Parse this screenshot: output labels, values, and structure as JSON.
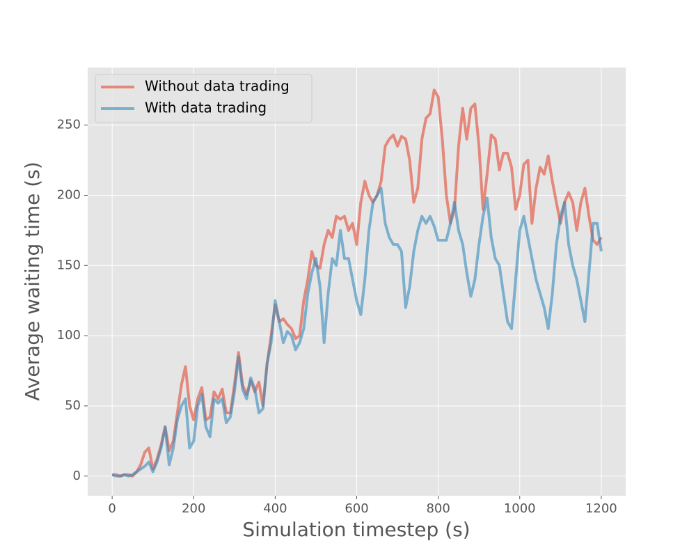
{
  "chart_data": {
    "type": "line",
    "xlabel": "Simulation timestep (s)",
    "ylabel": "Average waiting time (s)",
    "x": [
      0,
      10,
      20,
      30,
      40,
      50,
      60,
      70,
      80,
      90,
      100,
      110,
      120,
      130,
      140,
      150,
      160,
      170,
      180,
      190,
      200,
      210,
      220,
      230,
      240,
      250,
      260,
      270,
      280,
      290,
      300,
      310,
      320,
      330,
      340,
      350,
      360,
      370,
      380,
      390,
      400,
      410,
      420,
      430,
      440,
      450,
      460,
      470,
      480,
      490,
      500,
      510,
      520,
      530,
      540,
      550,
      560,
      570,
      580,
      590,
      600,
      610,
      620,
      630,
      640,
      650,
      660,
      670,
      680,
      690,
      700,
      710,
      720,
      730,
      740,
      750,
      760,
      770,
      780,
      790,
      800,
      810,
      820,
      830,
      840,
      850,
      860,
      870,
      880,
      890,
      900,
      910,
      920,
      930,
      940,
      950,
      960,
      970,
      980,
      990,
      1000,
      1010,
      1020,
      1030,
      1040,
      1050,
      1060,
      1070,
      1080,
      1090,
      1100,
      1110,
      1120,
      1130,
      1140,
      1150,
      1160,
      1170,
      1180,
      1190,
      1200
    ],
    "series": [
      {
        "name": "Without data trading",
        "color": "#E24A33",
        "values": [
          1,
          1,
          0,
          1,
          1,
          0,
          3,
          8,
          17,
          20,
          5,
          12,
          22,
          35,
          18,
          25,
          45,
          65,
          78,
          50,
          40,
          55,
          63,
          40,
          42,
          60,
          55,
          62,
          45,
          45,
          65,
          88,
          65,
          58,
          68,
          60,
          67,
          50,
          80,
          100,
          122,
          110,
          112,
          108,
          105,
          98,
          100,
          125,
          140,
          160,
          150,
          148,
          165,
          175,
          170,
          185,
          183,
          185,
          175,
          180,
          165,
          195,
          210,
          200,
          195,
          200,
          210,
          235,
          240,
          243,
          235,
          242,
          240,
          225,
          195,
          205,
          240,
          255,
          258,
          275,
          270,
          240,
          200,
          180,
          190,
          235,
          262,
          240,
          262,
          265,
          235,
          190,
          215,
          243,
          240,
          218,
          230,
          230,
          220,
          190,
          200,
          222,
          225,
          180,
          205,
          220,
          215,
          228,
          210,
          195,
          180,
          195,
          202,
          195,
          175,
          195,
          205,
          185,
          168,
          165,
          170
        ]
      },
      {
        "name": "With data trading",
        "color": "#348ABD",
        "values": [
          1,
          0,
          0,
          1,
          0,
          1,
          3,
          5,
          7,
          10,
          3,
          10,
          20,
          35,
          8,
          20,
          40,
          50,
          55,
          20,
          25,
          50,
          58,
          35,
          28,
          55,
          52,
          55,
          38,
          42,
          60,
          85,
          62,
          55,
          70,
          62,
          45,
          48,
          80,
          95,
          125,
          110,
          95,
          103,
          100,
          90,
          95,
          105,
          130,
          145,
          155,
          135,
          95,
          130,
          155,
          150,
          175,
          155,
          155,
          140,
          125,
          115,
          140,
          175,
          195,
          200,
          205,
          180,
          170,
          165,
          165,
          160,
          120,
          135,
          160,
          175,
          185,
          180,
          185,
          178,
          168,
          168,
          168,
          180,
          195,
          175,
          165,
          145,
          128,
          140,
          165,
          185,
          198,
          170,
          155,
          150,
          130,
          110,
          105,
          140,
          175,
          185,
          170,
          155,
          140,
          130,
          120,
          105,
          130,
          165,
          185,
          195,
          165,
          150,
          140,
          125,
          110,
          145,
          180,
          180,
          160
        ]
      }
    ],
    "xlim": [
      -60,
      1260
    ],
    "ylim": [
      -14,
      291
    ],
    "xticks": [
      0,
      200,
      400,
      600,
      800,
      1000,
      1200
    ],
    "yticks": [
      0,
      50,
      100,
      150,
      200,
      250
    ],
    "grid": true,
    "legend": "upper left"
  }
}
